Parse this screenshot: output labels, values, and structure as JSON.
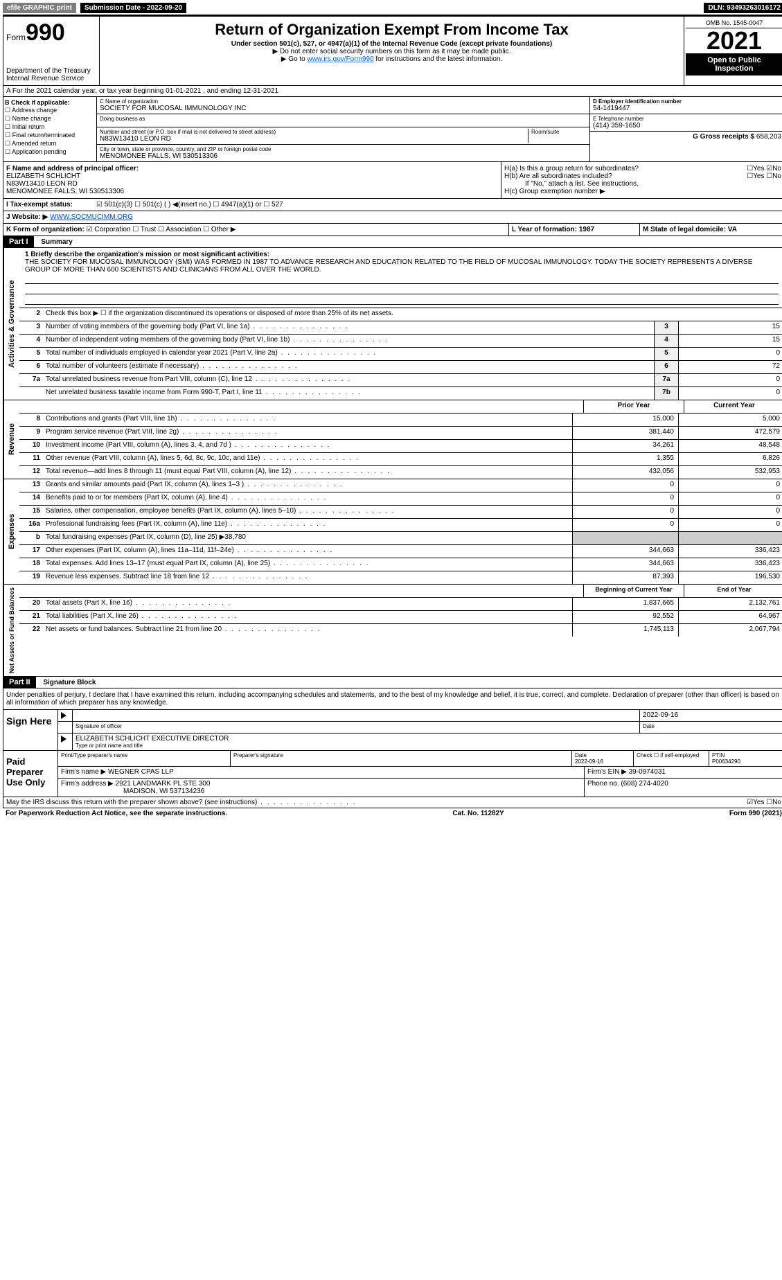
{
  "topbar": {
    "efile": "efile GRAPHIC print",
    "submission_label": "Submission Date - 2022-09-20",
    "dln": "DLN: 93493263016172"
  },
  "header": {
    "form_prefix": "Form",
    "form_number": "990",
    "dept": "Department of the Treasury",
    "irs": "Internal Revenue Service",
    "title": "Return of Organization Exempt From Income Tax",
    "subtitle": "Under section 501(c), 527, or 4947(a)(1) of the Internal Revenue Code (except private foundations)",
    "note1": "▶ Do not enter social security numbers on this form as it may be made public.",
    "note2_prefix": "▶ Go to ",
    "note2_link": "www.irs.gov/Form990",
    "note2_suffix": " for instructions and the latest information.",
    "omb": "OMB No. 1545-0047",
    "year": "2021",
    "open": "Open to Public Inspection"
  },
  "section_a": "A For the 2021 calendar year, or tax year beginning 01-01-2021   , and ending 12-31-2021",
  "section_b": {
    "head": "B Check if applicable:",
    "items": [
      "☐ Address change",
      "☐ Name change",
      "☐ Initial return",
      "☐ Final return/terminated",
      "☐ Amended return",
      "☐ Application pending"
    ]
  },
  "section_c": {
    "name_label": "C Name of organization",
    "name": "SOCIETY FOR MUCOSAL IMMUNOLOGY INC",
    "dba_label": "Doing business as",
    "street_label": "Number and street (or P.O. box if mail is not delivered to street address)",
    "room_label": "Room/suite",
    "street": "N83W13410 LEON RD",
    "city_label": "City or town, state or province, country, and ZIP or foreign postal code",
    "city": "MENOMONEE FALLS, WI  530513306"
  },
  "section_d": {
    "label": "D Employer identification number",
    "ein": "54-1419447",
    "e_label": "E Telephone number",
    "phone": "(414) 359-1650",
    "g_label": "G Gross receipts $",
    "g_val": "658,203"
  },
  "section_f": {
    "label": "F Name and address of principal officer:",
    "name": "ELIZABETH SCHLICHT",
    "street": "N83W13410 LEON RD",
    "city": "MENOMONEE FALLS, WI  530513306"
  },
  "section_h": {
    "ha": "H(a)  Is this a group return for subordinates?",
    "ha_ans": "☐Yes ☑No",
    "hb": "H(b)  Are all subordinates included?",
    "hb_ans": "☐Yes ☐No",
    "hb_note": "If \"No,\" attach a list. See instructions.",
    "hc": "H(c)  Group exemption number ▶"
  },
  "section_i": {
    "label": "I  Tax-exempt status:",
    "opts": "☑ 501(c)(3)   ☐ 501(c) (  ) ◀(insert no.)   ☐ 4947(a)(1) or   ☐ 527"
  },
  "section_j": {
    "label": "J  Website: ▶",
    "url": "WWW.SOCMUCIMM.ORG"
  },
  "section_k": {
    "label": "K Form of organization:",
    "opts": "☑ Corporation ☐ Trust ☐ Association ☐ Other ▶",
    "l": "L Year of formation: 1987",
    "m": "M State of legal domicile: VA"
  },
  "part1": {
    "header": "Part I",
    "title": "Summary",
    "mission_label": "1  Briefly describe the organization's mission or most significant activities:",
    "mission": "THE SOCIETY FOR MUCOSAL IMMUNOLOGY (SMI) WAS FORMED IN 1987 TO ADVANCE RESEARCH AND EDUCATION RELATED TO THE FIELD OF MUCOSAL IMMUNOLOGY. TODAY THE SOCIETY REPRESENTS A DIVERSE GROUP OF MORE THAN 600 SCIENTISTS AND CLINICIANS FROM ALL OVER THE WORLD.",
    "line2": "Check this box ▶ ☐ if the organization discontinued its operations or disposed of more than 25% of its net assets.",
    "governance_rows": [
      {
        "num": "3",
        "text": "Number of voting members of the governing body (Part VI, line 1a)",
        "box": "3",
        "val": "15"
      },
      {
        "num": "4",
        "text": "Number of independent voting members of the governing body (Part VI, line 1b)",
        "box": "4",
        "val": "15"
      },
      {
        "num": "5",
        "text": "Total number of individuals employed in calendar year 2021 (Part V, line 2a)",
        "box": "5",
        "val": "0"
      },
      {
        "num": "6",
        "text": "Total number of volunteers (estimate if necessary)",
        "box": "6",
        "val": "72"
      },
      {
        "num": "7a",
        "text": "Total unrelated business revenue from Part VIII, column (C), line 12",
        "box": "7a",
        "val": "0"
      },
      {
        "num": "",
        "text": "Net unrelated business taxable income from Form 990-T, Part I, line 11",
        "box": "7b",
        "val": "0"
      }
    ],
    "col_headers": {
      "prior": "Prior Year",
      "current": "Current Year"
    },
    "revenue_rows": [
      {
        "num": "8",
        "text": "Contributions and grants (Part VIII, line 1h)",
        "prior": "15,000",
        "current": "5,000"
      },
      {
        "num": "9",
        "text": "Program service revenue (Part VIII, line 2g)",
        "prior": "381,440",
        "current": "472,579"
      },
      {
        "num": "10",
        "text": "Investment income (Part VIII, column (A), lines 3, 4, and 7d )",
        "prior": "34,261",
        "current": "48,548"
      },
      {
        "num": "11",
        "text": "Other revenue (Part VIII, column (A), lines 5, 6d, 8c, 9c, 10c, and 11e)",
        "prior": "1,355",
        "current": "6,826"
      },
      {
        "num": "12",
        "text": "Total revenue—add lines 8 through 11 (must equal Part VIII, column (A), line 12)",
        "prior": "432,056",
        "current": "532,953"
      }
    ],
    "expense_rows": [
      {
        "num": "13",
        "text": "Grants and similar amounts paid (Part IX, column (A), lines 1–3 )",
        "prior": "0",
        "current": "0"
      },
      {
        "num": "14",
        "text": "Benefits paid to or for members (Part IX, column (A), line 4)",
        "prior": "0",
        "current": "0"
      },
      {
        "num": "15",
        "text": "Salaries, other compensation, employee benefits (Part IX, column (A), lines 5–10)",
        "prior": "0",
        "current": "0"
      },
      {
        "num": "16a",
        "text": "Professional fundraising fees (Part IX, column (A), line 11e)",
        "prior": "0",
        "current": "0"
      },
      {
        "num": "b",
        "text": "Total fundraising expenses (Part IX, column (D), line 25) ▶38,780",
        "prior": "",
        "current": ""
      },
      {
        "num": "17",
        "text": "Other expenses (Part IX, column (A), lines 11a–11d, 11f–24e)",
        "prior": "344,663",
        "current": "336,423"
      },
      {
        "num": "18",
        "text": "Total expenses. Add lines 13–17 (must equal Part IX, column (A), line 25)",
        "prior": "344,663",
        "current": "336,423"
      },
      {
        "num": "19",
        "text": "Revenue less expenses. Subtract line 18 from line 12",
        "prior": "87,393",
        "current": "196,530"
      }
    ],
    "balance_headers": {
      "begin": "Beginning of Current Year",
      "end": "End of Year"
    },
    "balance_rows": [
      {
        "num": "20",
        "text": "Total assets (Part X, line 16)",
        "prior": "1,837,665",
        "current": "2,132,761"
      },
      {
        "num": "21",
        "text": "Total liabilities (Part X, line 26)",
        "prior": "92,552",
        "current": "64,967"
      },
      {
        "num": "22",
        "text": "Net assets or fund balances. Subtract line 21 from line 20",
        "prior": "1,745,113",
        "current": "2,067,794"
      }
    ]
  },
  "part2": {
    "header": "Part II",
    "title": "Signature Block",
    "declaration": "Under penalties of perjury, I declare that I have examined this return, including accompanying schedules and statements, and to the best of my knowledge and belief, it is true, correct, and complete. Declaration of preparer (other than officer) is based on all information of which preparer has any knowledge."
  },
  "sign": {
    "left": "Sign Here",
    "date": "2022-09-16",
    "sig_label": "Signature of officer",
    "date_label": "Date",
    "name": "ELIZABETH SCHLICHT  EXECUTIVE DIRECTOR",
    "name_label": "Type or print name and title"
  },
  "paid": {
    "left": "Paid Preparer Use Only",
    "h1": "Print/Type preparer's name",
    "h2": "Preparer's signature",
    "h3": "Date",
    "h4": "Check ☐ if self-employed",
    "h5": "PTIN",
    "date": "2022-09-16",
    "ptin": "P00634290",
    "firm_label": "Firm's name    ▶",
    "firm": "WEGNER CPAS LLP",
    "ein_label": "Firm's EIN ▶",
    "ein": "39-0974031",
    "addr_label": "Firm's address ▶",
    "addr1": "2921 LANDMARK PL STE 300",
    "addr2": "MADISON, WI  537134236",
    "phone_label": "Phone no.",
    "phone": "(608) 274-4020"
  },
  "discuss": {
    "text": "May the IRS discuss this return with the preparer shown above? (see instructions)",
    "ans": "☑Yes  ☐No"
  },
  "footer": {
    "left": "For Paperwork Reduction Act Notice, see the separate instructions.",
    "center": "Cat. No. 11282Y",
    "right": "Form 990 (2021)"
  }
}
